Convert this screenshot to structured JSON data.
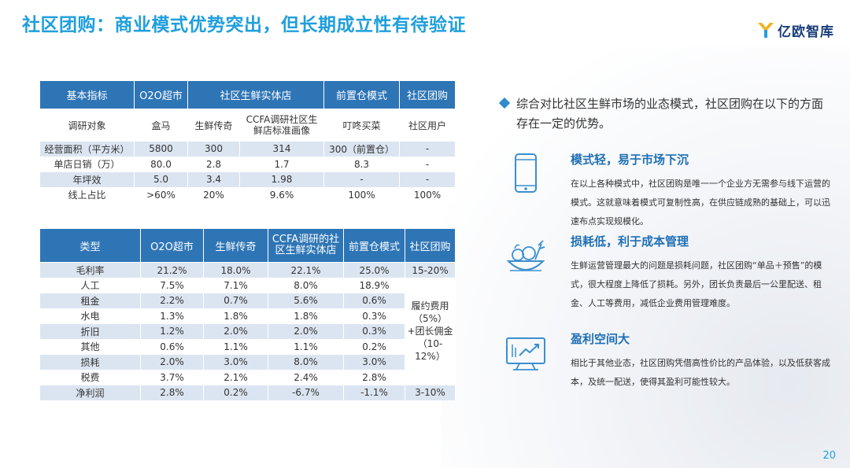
{
  "title": "社区团购：商业模式优势突出，但长期成立性有待验证",
  "logo_text": "亿欧智库",
  "table1": {
    "headers": [
      "基本指标",
      "O2O超市",
      "社区生鲜实体店",
      "前置仓模式",
      "社区团购"
    ],
    "object_row": [
      "调研对象",
      "盒马",
      "生鲜传奇",
      "CCFA调研社区生鲜店标准画像",
      "叮咚买菜",
      "社区用户"
    ],
    "rows": [
      [
        "经营面积（平方米）",
        "5800",
        "300",
        "314",
        "300（前置仓）",
        "-"
      ],
      [
        "单店日销（万）",
        "80.0",
        "2.8",
        "1.7",
        "8.3",
        "-"
      ],
      [
        "年坪效",
        "5.0",
        "3.4",
        "1.98",
        "-",
        "-"
      ],
      [
        "线上占比",
        ">60%",
        "20%",
        "9.6%",
        "100%",
        "100%"
      ]
    ]
  },
  "table2": {
    "headers": [
      "类型",
      "O2O超市",
      "生鲜传奇",
      "CCFA调研的社区生鲜实体店",
      "前置仓模式",
      "社区团购"
    ],
    "rows": [
      [
        "毛利率",
        "21.2%",
        "18.0%",
        "22.1%",
        "25.0%"
      ],
      [
        "人工",
        "7.5%",
        "7.1%",
        "8.0%",
        "18.9%"
      ],
      [
        "租金",
        "2.2%",
        "0.7%",
        "5.6%",
        "0.6%"
      ],
      [
        "水电",
        "1.3%",
        "1.8%",
        "1.8%",
        "0.3%"
      ],
      [
        "折旧",
        "1.2%",
        "2.0%",
        "2.0%",
        "0.3%"
      ],
      [
        "其他",
        "0.6%",
        "1.1%",
        "1.1%",
        "0.2%"
      ],
      [
        "损耗",
        "2.0%",
        "3.0%",
        "8.0%",
        "3.0%"
      ],
      [
        "税费",
        "3.7%",
        "2.1%",
        "2.4%",
        "2.8%"
      ],
      [
        "净利润",
        "2.8%",
        "0.2%",
        "-6.7%",
        "-1.1%"
      ]
    ],
    "tuangou_gross": "15-20%",
    "tuangou_cost": "履约费用（5%）+团长佣金（10-12%）",
    "tuangou_net": "3-10%"
  },
  "bullet": "综合对比社区生鲜市场的业态模式，社区团购在以下的方面存在一定的优势。",
  "features": [
    {
      "icon": "phone-icon",
      "heading": "模式轻，易于市场下沉",
      "text": "在以上各种模式中，社区团购是唯一一个企业方无需参与线下运营的模式。这就意味着模式可复制性高，在供应链成熟的基础上，可以迅速布点实现规模化。"
    },
    {
      "icon": "vegetables-icon",
      "heading": "损耗低，利于成本管理",
      "text": "生鲜运营管理最大的问题是损耗问题，社区团购“单品＋预售”的模式，很大程度上降低了损耗。另外，团长负责最后一公里配送、租金、人工等费用，减低企业费用管理难度。"
    },
    {
      "icon": "growth-chart-icon",
      "heading": "盈利空间大",
      "text": "相比于其他业态，社区团购凭借高性价比的产品体验，以及低获客成本，及统一配送，使得其盈利可能性较大。"
    }
  ],
  "page_number": "20",
  "colors": {
    "accent": "#1f9fdc",
    "header": "#2e75b6",
    "stripe": "#dbe5f1",
    "heading": "#1f6fb5"
  }
}
